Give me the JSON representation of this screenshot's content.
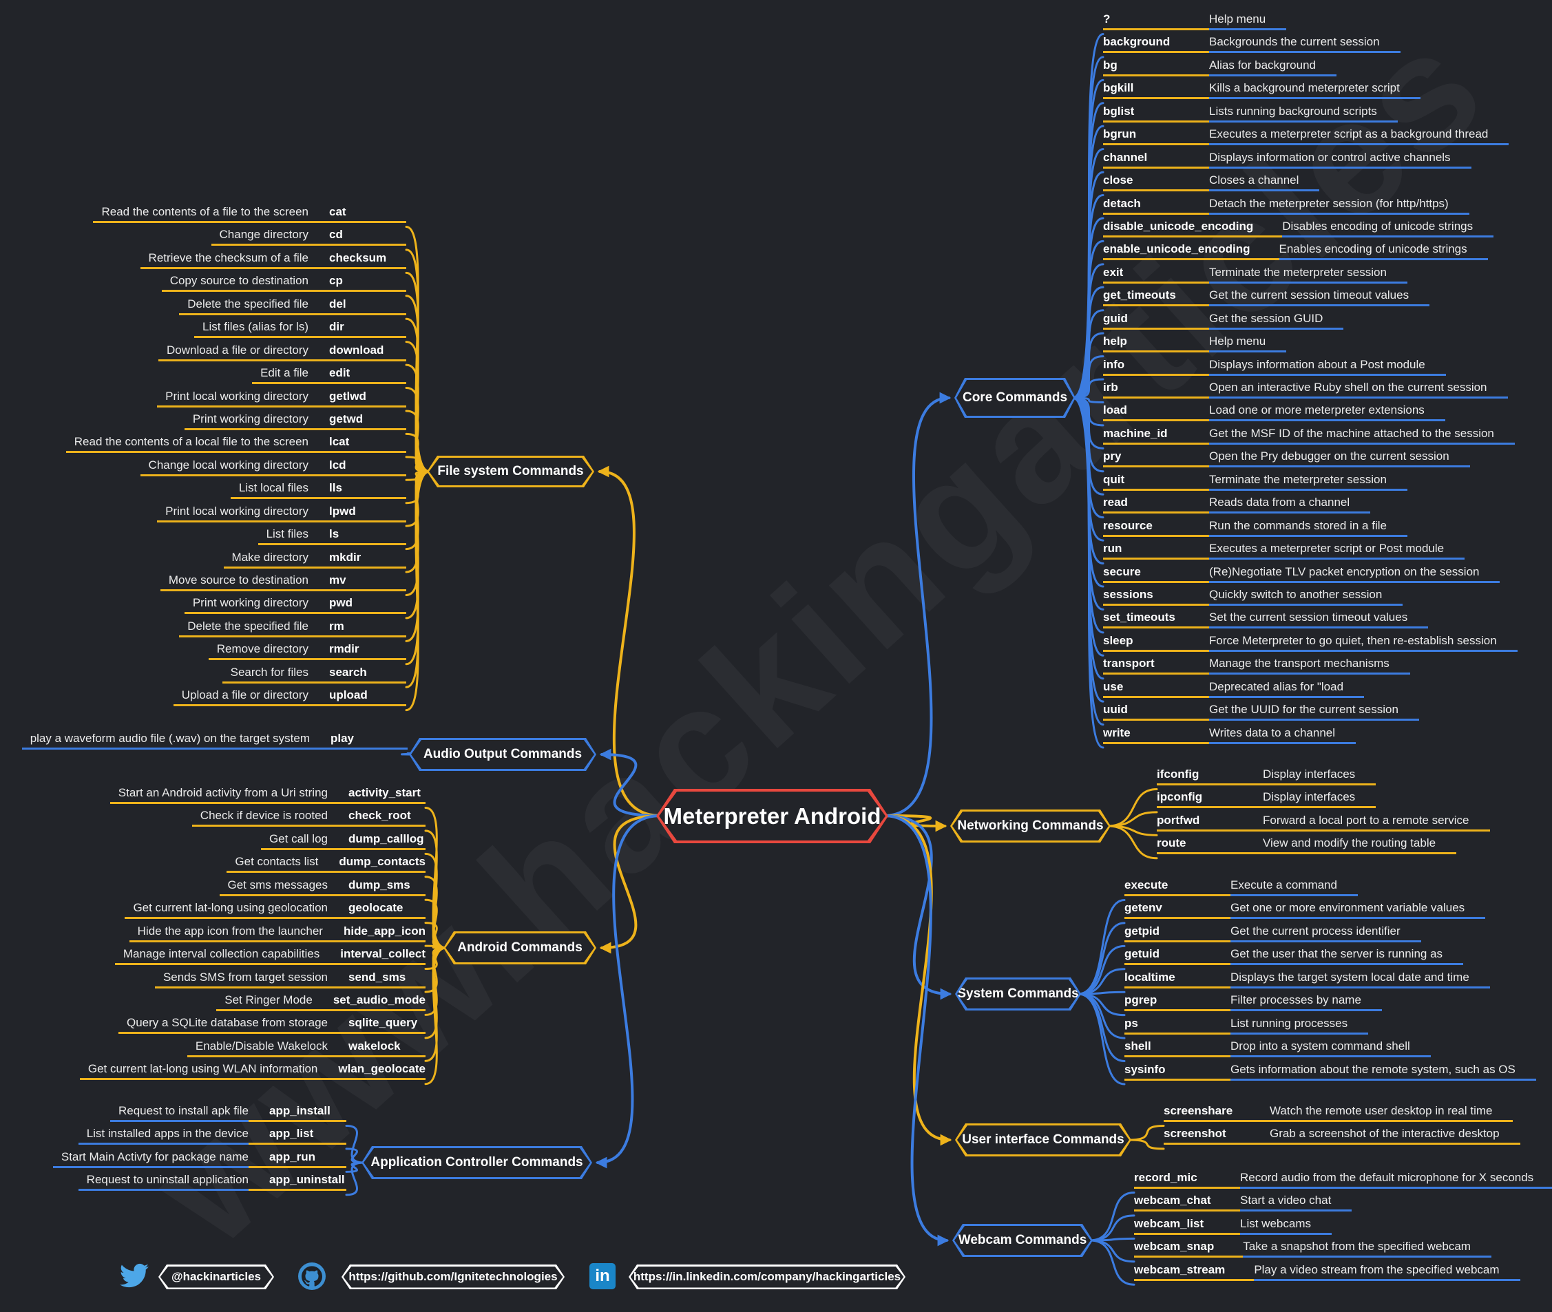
{
  "title": "Meterpreter Android",
  "watermark": "www.hackingarticles",
  "colors": {
    "background": "#222429",
    "yellow": "#eeb31b",
    "blue": "#3c7ce0",
    "red": "#e8483e"
  },
  "sections": [
    {
      "id": "core",
      "label": "Core Commands",
      "side": "right",
      "color": "blue",
      "cmd_line": "yellow",
      "desc_line": "blue",
      "commands": [
        {
          "cmd": "?",
          "desc": "Help menu"
        },
        {
          "cmd": "background",
          "desc": "Backgrounds the current session"
        },
        {
          "cmd": "bg",
          "desc": "Alias for background"
        },
        {
          "cmd": "bgkill",
          "desc": "Kills a background meterpreter script"
        },
        {
          "cmd": "bglist",
          "desc": "Lists running background scripts"
        },
        {
          "cmd": "bgrun",
          "desc": "Executes a meterpreter script as a background thread"
        },
        {
          "cmd": "channel",
          "desc": "Displays information or control active channels"
        },
        {
          "cmd": "close",
          "desc": "Closes a channel"
        },
        {
          "cmd": "detach",
          "desc": "Detach the meterpreter session (for http/https)"
        },
        {
          "cmd": "disable_unicode_encoding",
          "desc": "Disables encoding of unicode strings"
        },
        {
          "cmd": "enable_unicode_encoding",
          "desc": "Enables encoding of unicode strings"
        },
        {
          "cmd": "exit",
          "desc": "Terminate the meterpreter session"
        },
        {
          "cmd": "get_timeouts",
          "desc": "Get the current session timeout values"
        },
        {
          "cmd": "guid",
          "desc": "Get the session GUID"
        },
        {
          "cmd": "help",
          "desc": "Help menu"
        },
        {
          "cmd": "info",
          "desc": "Displays information about a Post module"
        },
        {
          "cmd": "irb",
          "desc": "Open an interactive Ruby shell on the current session"
        },
        {
          "cmd": "load",
          "desc": "Load one or more meterpreter extensions"
        },
        {
          "cmd": "machine_id",
          "desc": "Get the MSF ID of the machine attached to the session"
        },
        {
          "cmd": "pry",
          "desc": "Open the Pry debugger on the current session"
        },
        {
          "cmd": "quit",
          "desc": "Terminate the meterpreter session"
        },
        {
          "cmd": "read",
          "desc": "Reads data from a channel"
        },
        {
          "cmd": "resource",
          "desc": "Run the commands stored in a file"
        },
        {
          "cmd": "run",
          "desc": "Executes a meterpreter script or Post module"
        },
        {
          "cmd": "secure",
          "desc": "(Re)Negotiate TLV packet encryption on the session"
        },
        {
          "cmd": "sessions",
          "desc": "Quickly switch to another session"
        },
        {
          "cmd": "set_timeouts",
          "desc": "Set the current session timeout values"
        },
        {
          "cmd": "sleep",
          "desc": "Force Meterpreter to go quiet, then re-establish session"
        },
        {
          "cmd": "transport",
          "desc": "Manage the transport mechanisms"
        },
        {
          "cmd": "use",
          "desc": "Deprecated alias for \"load"
        },
        {
          "cmd": "uuid",
          "desc": "Get the UUID for the current session"
        },
        {
          "cmd": "write",
          "desc": "Writes data to a channel"
        }
      ]
    },
    {
      "id": "filesystem",
      "label": "File system Commands",
      "side": "left",
      "color": "yellow",
      "cmd_line": "yellow",
      "desc_line": "yellow",
      "commands": [
        {
          "cmd": "cat",
          "desc": "Read the contents of a file to the screen"
        },
        {
          "cmd": "cd",
          "desc": "Change directory"
        },
        {
          "cmd": "checksum",
          "desc": "Retrieve the checksum of a file"
        },
        {
          "cmd": "cp",
          "desc": "Copy source to destination"
        },
        {
          "cmd": "del",
          "desc": "Delete the specified file"
        },
        {
          "cmd": "dir",
          "desc": "List files (alias for ls)"
        },
        {
          "cmd": "download",
          "desc": "Download a file or directory"
        },
        {
          "cmd": "edit",
          "desc": "Edit a file"
        },
        {
          "cmd": "getlwd",
          "desc": "Print local working directory"
        },
        {
          "cmd": "getwd",
          "desc": "Print working directory"
        },
        {
          "cmd": "lcat",
          "desc": "Read the contents of a local file to the screen"
        },
        {
          "cmd": "lcd",
          "desc": "Change local working directory"
        },
        {
          "cmd": "lls",
          "desc": "List local files"
        },
        {
          "cmd": "lpwd",
          "desc": "Print local working directory"
        },
        {
          "cmd": "ls",
          "desc": "List files"
        },
        {
          "cmd": "mkdir",
          "desc": "Make directory"
        },
        {
          "cmd": "mv",
          "desc": "Move source to destination"
        },
        {
          "cmd": "pwd",
          "desc": "Print working directory"
        },
        {
          "cmd": "rm",
          "desc": "Delete the specified file"
        },
        {
          "cmd": "rmdir",
          "desc": "Remove directory"
        },
        {
          "cmd": "search",
          "desc": "Search for files"
        },
        {
          "cmd": "upload",
          "desc": "Upload a file or directory"
        }
      ]
    },
    {
      "id": "audio",
      "label": "Audio Output Commands",
      "side": "left",
      "color": "blue",
      "cmd_line": "blue",
      "desc_line": "blue",
      "commands": [
        {
          "cmd": "play",
          "desc": "play a waveform audio file (.wav) on the target system"
        }
      ]
    },
    {
      "id": "android",
      "label": "Android Commands",
      "side": "left",
      "color": "yellow",
      "cmd_line": "yellow",
      "desc_line": "yellow",
      "commands": [
        {
          "cmd": "activity_start",
          "desc": "Start an Android activity from a Uri string"
        },
        {
          "cmd": "check_root",
          "desc": "Check if device is rooted"
        },
        {
          "cmd": "dump_calllog",
          "desc": "Get call log"
        },
        {
          "cmd": "dump_contacts",
          "desc": "Get contacts list"
        },
        {
          "cmd": "dump_sms",
          "desc": "Get sms messages"
        },
        {
          "cmd": "geolocate",
          "desc": "Get current lat-long using geolocation"
        },
        {
          "cmd": "hide_app_icon",
          "desc": "Hide the app icon from the launcher"
        },
        {
          "cmd": "interval_collect",
          "desc": "Manage interval collection capabilities"
        },
        {
          "cmd": "send_sms",
          "desc": "Sends SMS from target session"
        },
        {
          "cmd": "set_audio_mode",
          "desc": "Set Ringer Mode"
        },
        {
          "cmd": "sqlite_query",
          "desc": "Query a SQLite database from storage"
        },
        {
          "cmd": "wakelock",
          "desc": "Enable/Disable Wakelock"
        },
        {
          "cmd": "wlan_geolocate",
          "desc": "Get current lat-long using WLAN information"
        }
      ]
    },
    {
      "id": "appctl",
      "label": "Application Controller Commands",
      "side": "left",
      "color": "blue",
      "cmd_line": "yellow",
      "desc_line": "blue",
      "commands": [
        {
          "cmd": "app_install",
          "desc": "Request to install apk file"
        },
        {
          "cmd": "app_list",
          "desc": "List installed apps in the device"
        },
        {
          "cmd": "app_run",
          "desc": "Start Main Activty for package name"
        },
        {
          "cmd": "app_uninstall",
          "desc": "Request to uninstall application"
        }
      ]
    },
    {
      "id": "networking",
      "label": "Networking Commands",
      "side": "right",
      "color": "yellow",
      "cmd_line": "yellow",
      "desc_line": "yellow",
      "commands": [
        {
          "cmd": "ifconfig",
          "desc": "Display interfaces"
        },
        {
          "cmd": "ipconfig",
          "desc": "Display interfaces"
        },
        {
          "cmd": "portfwd",
          "desc": "Forward a local port to a remote service"
        },
        {
          "cmd": "route",
          "desc": "View and modify the routing table"
        }
      ]
    },
    {
      "id": "system",
      "label": "System Commands",
      "side": "right",
      "color": "blue",
      "cmd_line": "yellow",
      "desc_line": "blue",
      "commands": [
        {
          "cmd": "execute",
          "desc": "Execute a command"
        },
        {
          "cmd": "getenv",
          "desc": "Get one or more environment variable values"
        },
        {
          "cmd": "getpid",
          "desc": "Get the current process identifier"
        },
        {
          "cmd": "getuid",
          "desc": "Get the user that the server is running as"
        },
        {
          "cmd": "localtime",
          "desc": "Displays the target system local date and time"
        },
        {
          "cmd": "pgrep",
          "desc": "Filter processes by name"
        },
        {
          "cmd": "ps",
          "desc": "List running processes"
        },
        {
          "cmd": "shell",
          "desc": "Drop into a system command shell"
        },
        {
          "cmd": "sysinfo",
          "desc": "Gets information about the remote system, such as OS"
        }
      ]
    },
    {
      "id": "ui",
      "label": "User interface Commands",
      "side": "right",
      "color": "yellow",
      "cmd_line": "yellow",
      "desc_line": "yellow",
      "commands": [
        {
          "cmd": "screenshare",
          "desc": "Watch the remote user desktop in real time"
        },
        {
          "cmd": "screenshot",
          "desc": "Grab a screenshot of the interactive desktop"
        }
      ]
    },
    {
      "id": "webcam",
      "label": "Webcam Commands",
      "side": "right",
      "color": "blue",
      "cmd_line": "yellow",
      "desc_line": "blue",
      "commands": [
        {
          "cmd": "record_mic",
          "desc": "Record audio from the default microphone for X seconds"
        },
        {
          "cmd": "webcam_chat",
          "desc": "Start a video chat"
        },
        {
          "cmd": "webcam_list",
          "desc": "List webcams"
        },
        {
          "cmd": "webcam_snap",
          "desc": "Take a snapshot from the specified webcam"
        },
        {
          "cmd": "webcam_stream",
          "desc": "Play a video stream from the specified webcam"
        }
      ]
    }
  ],
  "footer": {
    "twitter_handle": "@hackinarticles",
    "github_url": "https://github.com/Ignitetechnologies",
    "linkedin_url": "https://in.linkedin.com/company/hackingarticles",
    "linkedin_glyph": "in"
  }
}
